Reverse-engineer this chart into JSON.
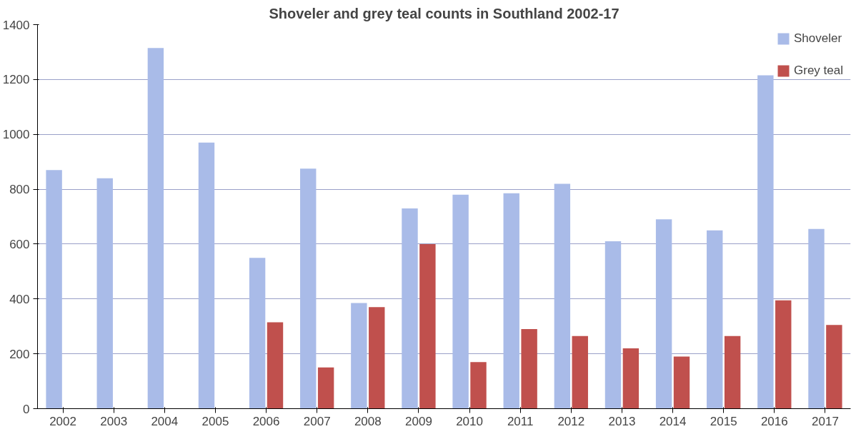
{
  "chart_data": {
    "type": "bar",
    "title": "Shoveler and grey teal counts in Southland 2002-17",
    "categories": [
      "2002",
      "2003",
      "2004",
      "2005",
      "2006",
      "2007",
      "2008",
      "2009",
      "2010",
      "2011",
      "2012",
      "2013",
      "2014",
      "2015",
      "2016",
      "2017"
    ],
    "series": [
      {
        "name": "Shoveler",
        "color": "#a9bbe8",
        "values": [
          870,
          840,
          1315,
          970,
          550,
          875,
          385,
          730,
          780,
          785,
          820,
          610,
          690,
          650,
          1215,
          655
        ]
      },
      {
        "name": "Grey teal",
        "color": "#c0504d",
        "values": [
          null,
          null,
          null,
          null,
          315,
          150,
          370,
          600,
          170,
          290,
          265,
          220,
          190,
          265,
          395,
          305
        ]
      }
    ],
    "ylim": [
      0,
      1400
    ],
    "yticks": [
      0,
      200,
      400,
      600,
      800,
      1000,
      1200,
      1400
    ],
    "grid": "y",
    "legend": "top right"
  }
}
